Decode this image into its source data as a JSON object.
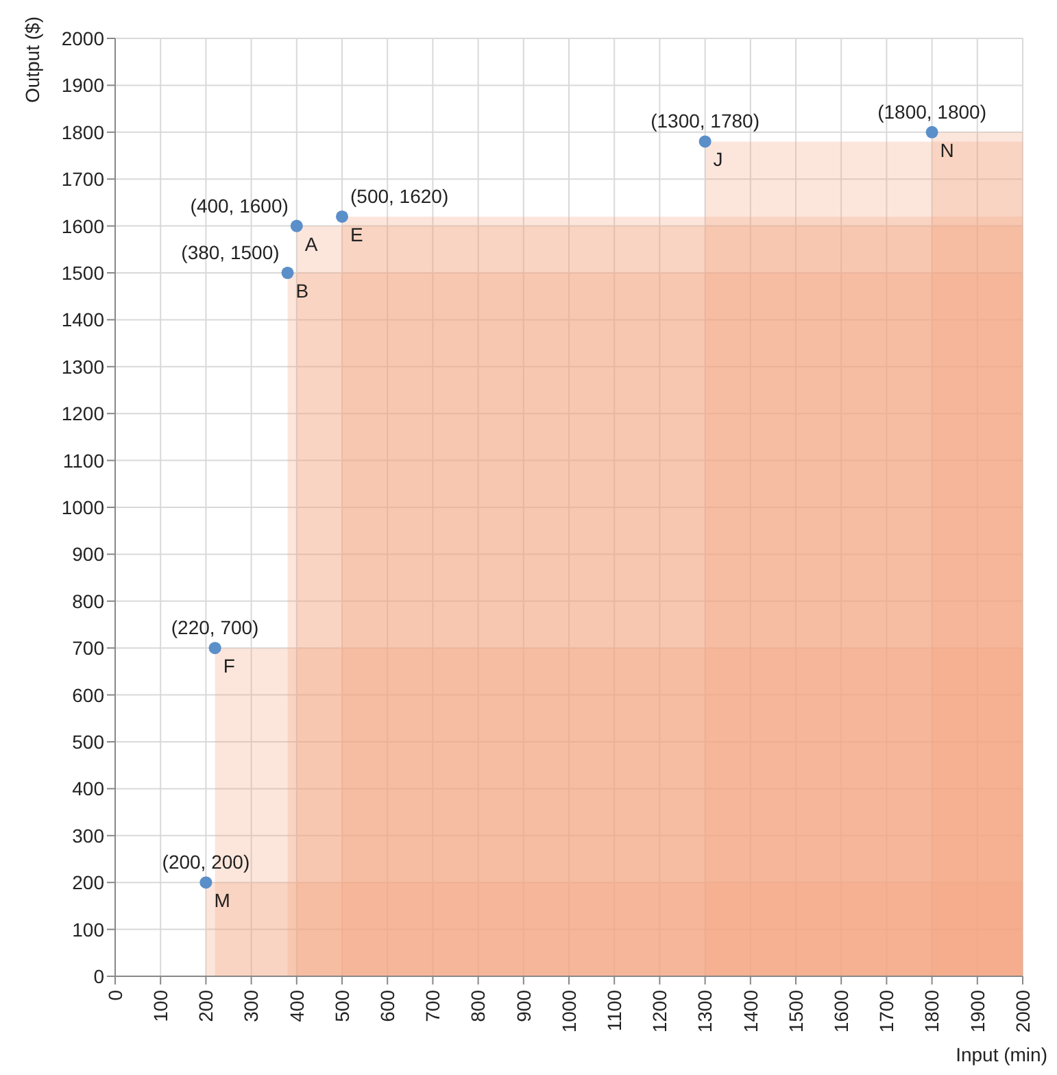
{
  "chart_data": {
    "type": "scatter",
    "xlabel": "Input (min)",
    "ylabel": "Output ($)",
    "xlim": [
      0,
      2000
    ],
    "ylim": [
      0,
      2000
    ],
    "xticks": [
      0,
      100,
      200,
      300,
      400,
      500,
      600,
      700,
      800,
      900,
      1000,
      1100,
      1200,
      1300,
      1400,
      1500,
      1600,
      1700,
      1800,
      1900,
      2000
    ],
    "yticks": [
      0,
      100,
      200,
      300,
      400,
      500,
      600,
      700,
      800,
      900,
      1000,
      1100,
      1200,
      1300,
      1400,
      1500,
      1600,
      1700,
      1800,
      1900,
      2000
    ],
    "grid": true,
    "series": [
      {
        "type": "area",
        "color": "#f4a582",
        "x": [
          200,
          2000
        ],
        "values": [
          200,
          200
        ]
      },
      {
        "type": "area",
        "color": "#f4a582",
        "x": [
          220,
          2000
        ],
        "values": [
          700,
          700
        ]
      },
      {
        "type": "area",
        "color": "#f4a582",
        "x": [
          380,
          2000
        ],
        "values": [
          1500,
          1500
        ]
      },
      {
        "type": "area",
        "color": "#f4a582",
        "x": [
          400,
          2000
        ],
        "values": [
          1600,
          1600
        ]
      },
      {
        "type": "area",
        "color": "#f4a582",
        "x": [
          500,
          2000
        ],
        "values": [
          1620,
          1620
        ]
      },
      {
        "type": "area",
        "color": "#f4a582",
        "x": [
          1300,
          2000
        ],
        "values": [
          1780,
          1780
        ]
      },
      {
        "type": "area",
        "color": "#f4a582",
        "x": [
          1800,
          2000
        ],
        "values": [
          1800,
          1800
        ]
      },
      {
        "marker": "circle",
        "color": "#5b8fc9",
        "x": [
          400,
          380,
          500,
          220,
          1300,
          200,
          1800
        ],
        "values": [
          1600,
          1500,
          1620,
          700,
          1780,
          200,
          1800
        ]
      }
    ],
    "annotations": [
      {
        "text": "A",
        "x": 400,
        "y": 1600
      },
      {
        "text": "B",
        "x": 380,
        "y": 1500
      },
      {
        "text": "E",
        "x": 500,
        "y": 1620
      },
      {
        "text": "F",
        "x": 220,
        "y": 700
      },
      {
        "text": "J",
        "x": 1300,
        "y": 1780
      },
      {
        "text": "M",
        "x": 200,
        "y": 200
      },
      {
        "text": "N",
        "x": 1800,
        "y": 1800
      },
      {
        "text": "(400, 1600)",
        "x": 400,
        "y": 1600
      },
      {
        "text": "(380, 1500)",
        "x": 380,
        "y": 1500
      },
      {
        "text": "(500, 1620)",
        "x": 500,
        "y": 1620
      },
      {
        "text": "(220, 700)",
        "x": 220,
        "y": 700
      },
      {
        "text": "(1300, 1780)",
        "x": 1300,
        "y": 1780
      },
      {
        "text": "(200, 200)",
        "x": 200,
        "y": 200
      },
      {
        "text": "(1800, 1800)",
        "x": 1800,
        "y": 1800
      }
    ]
  }
}
